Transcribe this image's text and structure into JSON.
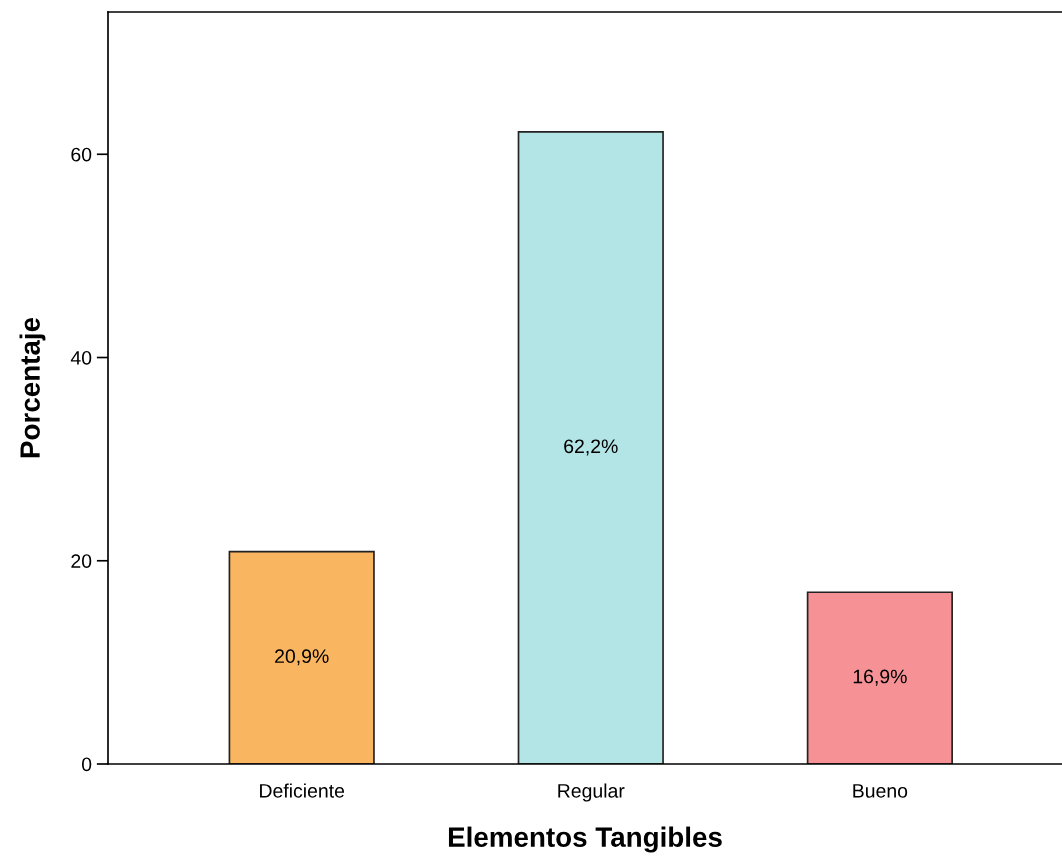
{
  "chart_data": {
    "type": "bar",
    "xlabel": "Elementos Tangibles",
    "ylabel": "Porcentaje",
    "categories": [
      "Deficiente",
      "Regular",
      "Bueno"
    ],
    "values": [
      20.9,
      62.2,
      16.9
    ],
    "colors": [
      "#f9b55f",
      "#b4e5e6",
      "#f69195"
    ],
    "value_labels": [
      "20,9%",
      "62,2%",
      "16,9%"
    ],
    "ylim": [
      0,
      74
    ],
    "yticks": [
      0,
      20,
      40,
      60
    ],
    "grid": false,
    "legend": false
  }
}
